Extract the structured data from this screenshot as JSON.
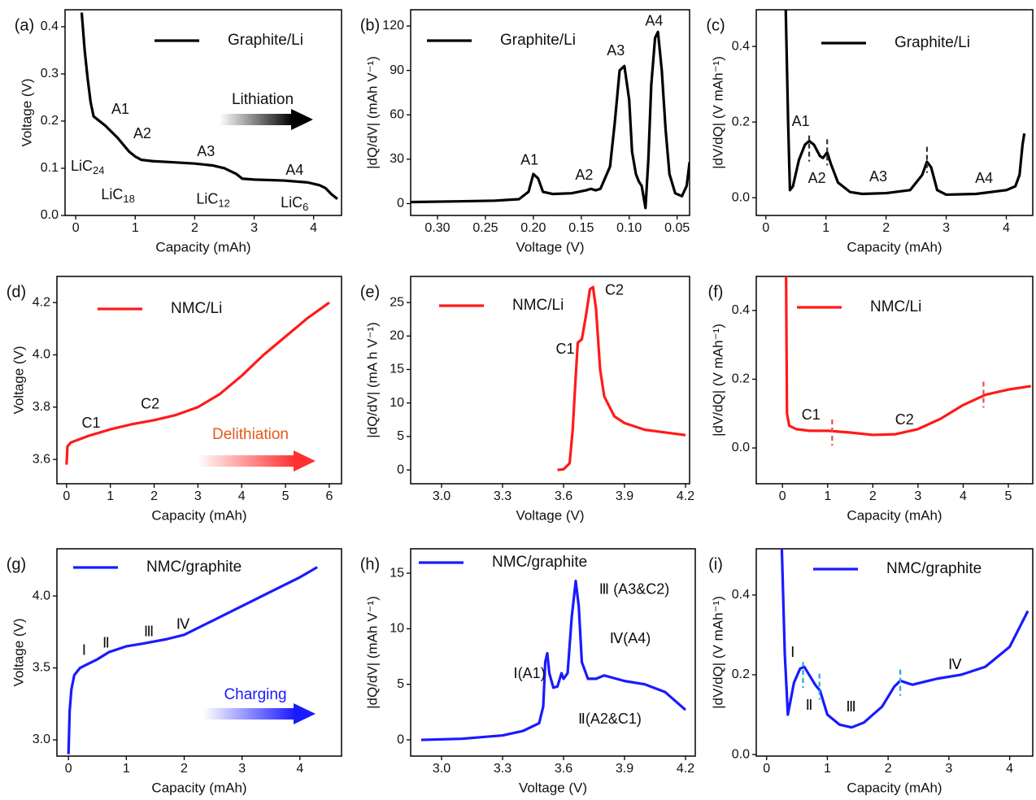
{
  "chart_data": [
    {
      "type": "line",
      "label": "(a)",
      "xlabel": "Capacity (mAh)",
      "ylabel": "Voltage (V)",
      "xlim": [
        -0.18,
        4.47
      ],
      "ylim": [
        0,
        0.436
      ],
      "xticks": [
        0,
        1,
        2,
        3,
        4
      ],
      "yticks": [
        {
          "value": 0,
          "label": "0.0"
        },
        0.1,
        0.2,
        0.3,
        0.4
      ],
      "x": [
        0.1,
        0.15,
        0.2,
        0.25,
        0.3,
        0.4,
        0.5,
        0.7,
        0.9,
        1.0,
        1.1,
        1.3,
        1.6,
        2.0,
        2.3,
        2.5,
        2.7,
        2.8,
        3.0,
        3.5,
        3.9,
        4.1,
        4.2,
        4.3,
        4.4
      ],
      "series": [
        {
          "name": "Graphite/Li",
          "color": "#000000",
          "values": [
            0.43,
            0.35,
            0.29,
            0.24,
            0.21,
            0.2,
            0.19,
            0.165,
            0.135,
            0.125,
            0.118,
            0.115,
            0.113,
            0.11,
            0.106,
            0.1,
            0.088,
            0.078,
            0.076,
            0.074,
            0.07,
            0.064,
            0.058,
            0.045,
            0.035
          ]
        }
      ],
      "annotations": [
        {
          "text": "A1",
          "x": 0.75,
          "y": 0.224
        },
        {
          "text": "A2",
          "x": 1.12,
          "y": 0.172
        },
        {
          "text": "A3",
          "x": 2.19,
          "y": 0.134
        },
        {
          "text": "A4",
          "x": 3.68,
          "y": 0.095
        },
        {
          "text": "LiC",
          "sub": "24",
          "x": 0.2,
          "y": 0.103
        },
        {
          "text": "LiC",
          "sub": "18",
          "x": 0.71,
          "y": 0.043
        },
        {
          "text": "LiC",
          "sub": "12",
          "x": 2.31,
          "y": 0.034
        },
        {
          "text": "LiC",
          "sub": "6",
          "x": 3.68,
          "y": 0.026
        }
      ],
      "direction": {
        "text": "Lithiation",
        "color": "#111111",
        "arrow_color": "#000000"
      }
    },
    {
      "type": "line",
      "label": "(b)",
      "xlabel": "Voltage (V)",
      "ylabel": "|dQ/dV| (mAh V⁻¹)",
      "xlim": [
        0.328,
        0.037
      ],
      "ylim": [
        -8,
        131
      ],
      "xticks": [
        {
          "value": 0.3,
          "label": "0.30"
        },
        0.25,
        {
          "value": 0.2,
          "label": "0.20"
        },
        0.15,
        {
          "value": 0.1,
          "label": "0.10"
        },
        0.05
      ],
      "yticks": [
        0,
        30,
        60,
        90,
        120
      ],
      "x": [
        0.33,
        0.28,
        0.24,
        0.215,
        0.205,
        0.2,
        0.195,
        0.19,
        0.18,
        0.16,
        0.145,
        0.14,
        0.135,
        0.13,
        0.12,
        0.115,
        0.11,
        0.105,
        0.1,
        0.097,
        0.093,
        0.09,
        0.087,
        0.083,
        0.08,
        0.077,
        0.073,
        0.07,
        0.066,
        0.062,
        0.058,
        0.052,
        0.045,
        0.04,
        0.037
      ],
      "series": [
        {
          "name": "Graphite/Li",
          "color": "#000000",
          "values": [
            1,
            1.5,
            2,
            3,
            8,
            20,
            17,
            8,
            6.5,
            7,
            9,
            10,
            9,
            10,
            25,
            55,
            90,
            93,
            70,
            35,
            20,
            15,
            12,
            -3,
            30,
            80,
            112,
            116,
            90,
            50,
            20,
            7,
            5,
            12,
            28
          ]
        }
      ],
      "annotations": [
        {
          "text": "A1",
          "x": 0.204,
          "y": 29
        },
        {
          "text": "A2",
          "x": 0.147,
          "y": 19
        },
        {
          "text": "A3",
          "x": 0.114,
          "y": 103
        },
        {
          "text": "A4",
          "x": 0.074,
          "y": 123
        }
      ]
    },
    {
      "type": "line",
      "label": "(c)",
      "xlabel": "Capacity (mAh)",
      "ylabel": "|dV/dQ| (V mAh⁻¹)",
      "xlim": [
        -0.16,
        4.44
      ],
      "ylim": [
        -0.047,
        0.497
      ],
      "xticks": [
        0,
        1,
        2,
        3,
        4
      ],
      "yticks": [
        {
          "value": 0,
          "label": "0.0"
        },
        0.2,
        0.4
      ],
      "x": [
        0.33,
        0.37,
        0.4,
        0.45,
        0.55,
        0.65,
        0.72,
        0.8,
        0.9,
        0.95,
        1.02,
        1.08,
        1.2,
        1.4,
        1.6,
        2.0,
        2.4,
        2.6,
        2.68,
        2.75,
        2.85,
        3.0,
        3.5,
        4.0,
        4.15,
        4.22,
        4.27,
        4.3
      ],
      "series": [
        {
          "name": "Graphite/Li",
          "color": "#000000",
          "values": [
            0.5,
            0.2,
            0.02,
            0.03,
            0.1,
            0.14,
            0.15,
            0.14,
            0.11,
            0.105,
            0.12,
            0.09,
            0.04,
            0.015,
            0.01,
            0.012,
            0.02,
            0.06,
            0.095,
            0.08,
            0.02,
            0.008,
            0.01,
            0.02,
            0.03,
            0.06,
            0.14,
            0.17
          ]
        }
      ],
      "markers": [
        {
          "x": 0.72,
          "y": 0.13
        },
        {
          "x": 1.02,
          "y": 0.12
        },
        {
          "x": 2.68,
          "y": 0.1
        }
      ],
      "marker_color": "#333333",
      "annotations": [
        {
          "text": "A1",
          "x": 0.58,
          "y": 0.2
        },
        {
          "text": "A2",
          "x": 0.85,
          "y": 0.05
        },
        {
          "text": "A3",
          "x": 1.87,
          "y": 0.054
        },
        {
          "text": "A4",
          "x": 3.63,
          "y": 0.05
        }
      ]
    },
    {
      "type": "line",
      "label": "(d)",
      "xlabel": "Capacity (mAh)",
      "ylabel": "Voltage (V)",
      "xlim": [
        -0.22,
        6.28
      ],
      "ylim": [
        3.507,
        4.3
      ],
      "xticks": [
        0,
        1,
        2,
        3,
        4,
        5,
        6
      ],
      "yticks": [
        3.6,
        3.8,
        {
          "value": 4,
          "label": "4.0"
        },
        4.2
      ],
      "x": [
        0,
        0.02,
        0.1,
        0.5,
        1,
        1.5,
        2,
        2.5,
        3,
        3.5,
        4,
        4.5,
        5,
        5.5,
        6
      ],
      "series": [
        {
          "name": "NMC/Li",
          "color": "#ff1a1a",
          "values": [
            3.58,
            3.65,
            3.665,
            3.69,
            3.715,
            3.735,
            3.75,
            3.77,
            3.8,
            3.85,
            3.92,
            4.0,
            4.07,
            4.14,
            4.2
          ]
        }
      ],
      "annotations": [
        {
          "text": "C1",
          "x": 0.56,
          "y": 3.737
        },
        {
          "text": "C2",
          "x": 1.91,
          "y": 3.81
        }
      ],
      "direction": {
        "text": "Delithiation",
        "color": "#e35a1a",
        "arrow_color": "#ff3030"
      }
    },
    {
      "type": "line",
      "label": "(e)",
      "xlabel": "Voltage (V)",
      "ylabel": "|dQ/dV| (mA h V⁻¹)",
      "xlim": [
        2.848,
        4.22
      ],
      "ylim": [
        -2.06,
        28.9
      ],
      "xticks": [
        {
          "value": 3,
          "label": "3.0"
        },
        3.3,
        3.6,
        3.9,
        4.2
      ],
      "yticks": [
        0,
        5,
        10,
        15,
        20,
        25
      ],
      "x": [
        3.57,
        3.6,
        3.63,
        3.645,
        3.66,
        3.67,
        3.69,
        3.71,
        3.73,
        3.745,
        3.76,
        3.78,
        3.8,
        3.85,
        3.9,
        4.0,
        4.1,
        4.2
      ],
      "series": [
        {
          "name": "NMC/Li",
          "color": "#ff1a1a",
          "values": [
            0,
            0.1,
            1,
            6,
            14,
            19,
            19.5,
            23,
            27,
            27.3,
            24,
            15,
            11,
            8,
            7,
            6,
            5.6,
            5.2
          ]
        }
      ],
      "annotations": [
        {
          "text": "C1",
          "x": 3.608,
          "y": 18
        },
        {
          "text": "C2",
          "x": 3.85,
          "y": 26.8
        }
      ]
    },
    {
      "type": "line",
      "label": "(f)",
      "xlabel": "Capacity (mAh)",
      "ylabel": "|dV/dQ| (V mAh⁻¹)",
      "xlim": [
        -0.58,
        5.54
      ],
      "ylim": [
        -0.104,
        0.499
      ],
      "xticks": [
        0,
        1,
        2,
        3,
        4,
        5
      ],
      "yticks": [
        {
          "value": 0,
          "label": "0.0"
        },
        0.2,
        0.4
      ],
      "x": [
        0.08,
        0.09,
        0.1,
        0.15,
        0.3,
        0.6,
        1.0,
        1.5,
        2,
        2.5,
        3,
        3.5,
        4,
        4.5,
        5,
        5.5
      ],
      "series": [
        {
          "name": "NMC/Li",
          "color": "#ff1a1a",
          "values": [
            0.5,
            0.3,
            0.1,
            0.065,
            0.055,
            0.05,
            0.05,
            0.045,
            0.038,
            0.04,
            0.055,
            0.085,
            0.125,
            0.155,
            0.17,
            0.18
          ]
        }
      ],
      "markers": [
        {
          "x": 1.1,
          "y": 0.045
        },
        {
          "x": 4.45,
          "y": 0.155
        }
      ],
      "marker_color": "#e05050",
      "annotations": [
        {
          "text": "C1",
          "x": 0.63,
          "y": 0.095
        },
        {
          "text": "C2",
          "x": 2.7,
          "y": 0.08
        }
      ]
    },
    {
      "type": "line",
      "label": "(g)",
      "xlabel": "Capacity (mAh)",
      "ylabel": "Voltage (V)",
      "xlim": [
        -0.2,
        4.72
      ],
      "ylim": [
        2.887,
        4.328
      ],
      "xticks": [
        0,
        1,
        2,
        3,
        4
      ],
      "yticks": [
        {
          "value": 3,
          "label": "3.0"
        },
        3.5,
        {
          "value": 4,
          "label": "4.0"
        }
      ],
      "x": [
        0,
        0.02,
        0.05,
        0.1,
        0.2,
        0.3,
        0.5,
        0.7,
        1,
        1.3,
        1.7,
        2,
        2.5,
        3,
        3.5,
        4,
        4.3
      ],
      "series": [
        {
          "name": "NMC/graphite",
          "color": "#1a1aff",
          "values": [
            2.9,
            3.2,
            3.35,
            3.45,
            3.5,
            3.52,
            3.56,
            3.61,
            3.65,
            3.67,
            3.7,
            3.73,
            3.83,
            3.93,
            4.03,
            4.13,
            4.2
          ]
        }
      ],
      "annotations": [
        {
          "text": "Ⅰ",
          "x": 0.27,
          "y": 3.62
        },
        {
          "text": "Ⅱ",
          "x": 0.65,
          "y": 3.67
        },
        {
          "text": "Ⅲ",
          "x": 1.39,
          "y": 3.75
        },
        {
          "text": "Ⅳ",
          "x": 1.98,
          "y": 3.8
        }
      ],
      "direction": {
        "text": "Charging",
        "color": "#1a1aff",
        "arrow_color": "#1a1aff"
      }
    },
    {
      "type": "line",
      "label": "(h)",
      "xlabel": "Voltage (V)",
      "ylabel": "|dQ/dV| (mAh V⁻¹)",
      "xlim": [
        2.848,
        4.248
      ],
      "ylim": [
        -1.46,
        17.2
      ],
      "xticks": [
        {
          "value": 3,
          "label": "3.0"
        },
        3.3,
        3.6,
        3.9,
        4.2
      ],
      "yticks": [
        0,
        5,
        10,
        15
      ],
      "x": [
        2.9,
        3.1,
        3.3,
        3.4,
        3.48,
        3.5,
        3.51,
        3.52,
        3.53,
        3.55,
        3.57,
        3.59,
        3.6,
        3.62,
        3.64,
        3.66,
        3.675,
        3.69,
        3.72,
        3.76,
        3.8,
        3.9,
        4.0,
        4.1,
        4.2
      ],
      "series": [
        {
          "name": "NMC/graphite",
          "color": "#1a1aff",
          "values": [
            0,
            0.1,
            0.4,
            0.8,
            1.5,
            3,
            7,
            7.8,
            6,
            4.7,
            4.8,
            6,
            5.5,
            6,
            11,
            14.3,
            12,
            7,
            5.5,
            5.5,
            5.8,
            5.3,
            5,
            4.3,
            2.7
          ]
        }
      ],
      "annotations": [
        {
          "text": "Ⅰ(A1)",
          "x": 3.432,
          "y": 5.93
        },
        {
          "text": "Ⅱ(A2&C1)",
          "x": 3.828,
          "y": 1.83
        },
        {
          "text": "Ⅲ (A3&C2)",
          "x": 3.948,
          "y": 13.5
        },
        {
          "text": "Ⅳ(A4)",
          "x": 3.928,
          "y": 9.07
        }
      ]
    },
    {
      "type": "line",
      "label": "(i)",
      "xlabel": "Capacity (mAh)",
      "ylabel": "|dV/dQ| (V mAh⁻¹)",
      "xlim": [
        -0.17,
        4.38
      ],
      "ylim": [
        -0.004,
        0.516
      ],
      "xticks": [
        0,
        1,
        2,
        3,
        4
      ],
      "yticks": [
        {
          "value": 0,
          "label": "0.0"
        },
        0.2,
        0.4
      ],
      "x": [
        0.25,
        0.3,
        0.35,
        0.45,
        0.55,
        0.62,
        0.7,
        0.8,
        0.88,
        1.0,
        1.2,
        1.4,
        1.6,
        1.9,
        2.1,
        2.2,
        2.4,
        2.8,
        3.2,
        3.6,
        4.0,
        4.2,
        4.3
      ],
      "series": [
        {
          "name": "NMC/graphite",
          "color": "#1a1aff",
          "values": [
            0.52,
            0.25,
            0.1,
            0.18,
            0.215,
            0.22,
            0.2,
            0.175,
            0.16,
            0.1,
            0.075,
            0.068,
            0.08,
            0.12,
            0.17,
            0.185,
            0.175,
            0.19,
            0.2,
            0.22,
            0.27,
            0.33,
            0.36
          ]
        }
      ],
      "markers": [
        {
          "x": 0.6,
          "y": 0.2
        },
        {
          "x": 0.87,
          "y": 0.17
        },
        {
          "x": 2.2,
          "y": 0.18
        }
      ],
      "marker_color": "#22aadd",
      "annotations": [
        {
          "text": "Ⅰ",
          "x": 0.43,
          "y": 0.255
        },
        {
          "text": "Ⅱ",
          "x": 0.7,
          "y": 0.122
        },
        {
          "text": "Ⅲ",
          "x": 1.39,
          "y": 0.118
        },
        {
          "text": "Ⅳ",
          "x": 3.1,
          "y": 0.224
        }
      ]
    }
  ]
}
